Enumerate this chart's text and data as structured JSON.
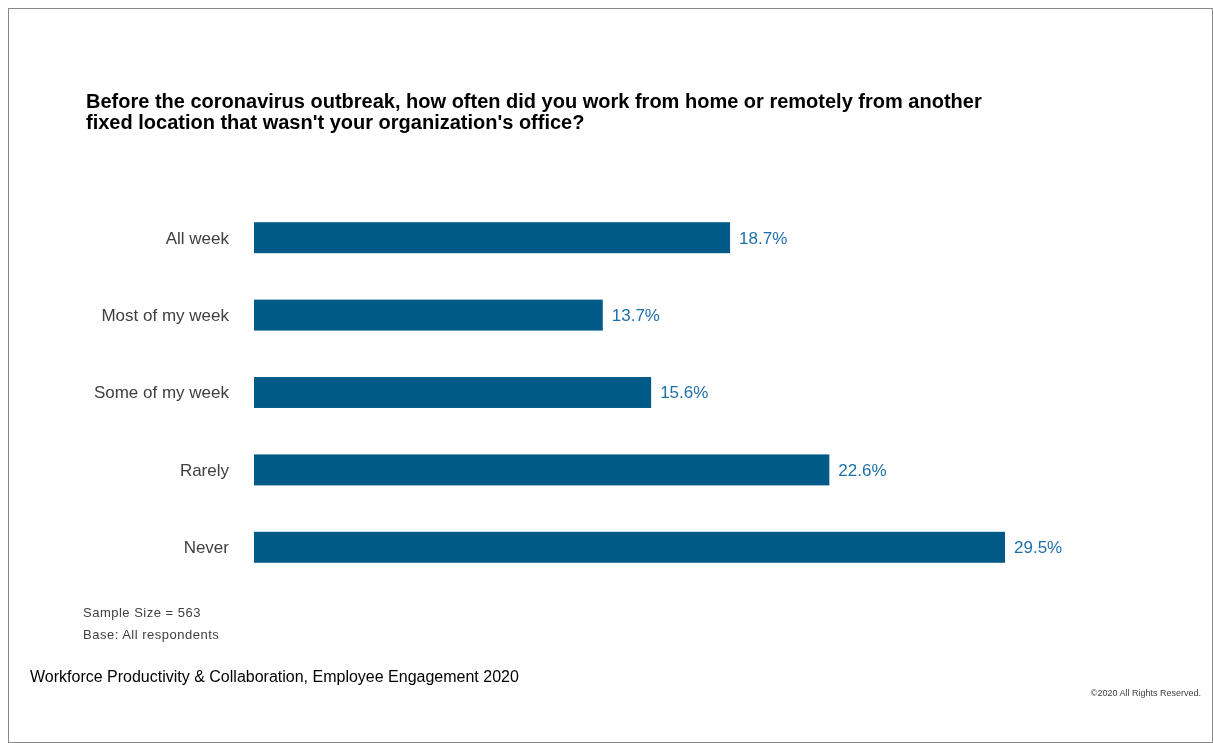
{
  "chart_data": {
    "type": "bar",
    "orientation": "horizontal",
    "title": "Before the coronavirus outbreak, how often did you work from home or remotely from another fixed location that wasn't your organization's office?",
    "categories": [
      "All week",
      "Most of my week",
      "Some of my week",
      "Rarely",
      "Never"
    ],
    "values": [
      18.7,
      13.7,
      15.6,
      22.6,
      29.5
    ],
    "value_labels": [
      "18.7%",
      "13.7%",
      "15.6%",
      "22.6%",
      "29.5%"
    ],
    "color": "#005a87",
    "annotations": [
      "Sample Size = 563",
      "Base: All respondents",
      "Workforce Productivity & Collaboration,  Employee Engagement 2020",
      "©2020 All Rights Reserved."
    ]
  }
}
